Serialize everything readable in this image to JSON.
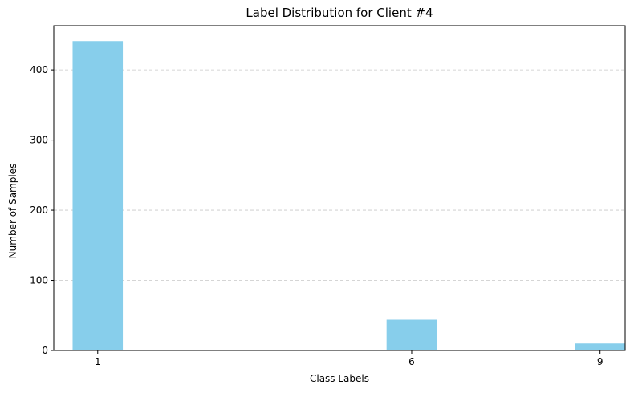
{
  "chart_data": {
    "type": "bar",
    "title": "Label Distribution for Client #4",
    "xlabel": "Class Labels",
    "ylabel": "Number of Samples",
    "categories": [
      "1",
      "6",
      "9"
    ],
    "x": [
      1,
      6,
      9
    ],
    "values": [
      441,
      44,
      10
    ],
    "xlim": [
      0.3,
      9.4
    ],
    "ylim": [
      0,
      463
    ],
    "yticks": [
      0,
      100,
      200,
      300,
      400
    ],
    "grid": "y-dashed",
    "legend": "none",
    "bar_width": 0.8,
    "colors": {
      "bar": "#87ceeb",
      "grid": "#c8c8c8",
      "axis": "#000000"
    }
  }
}
